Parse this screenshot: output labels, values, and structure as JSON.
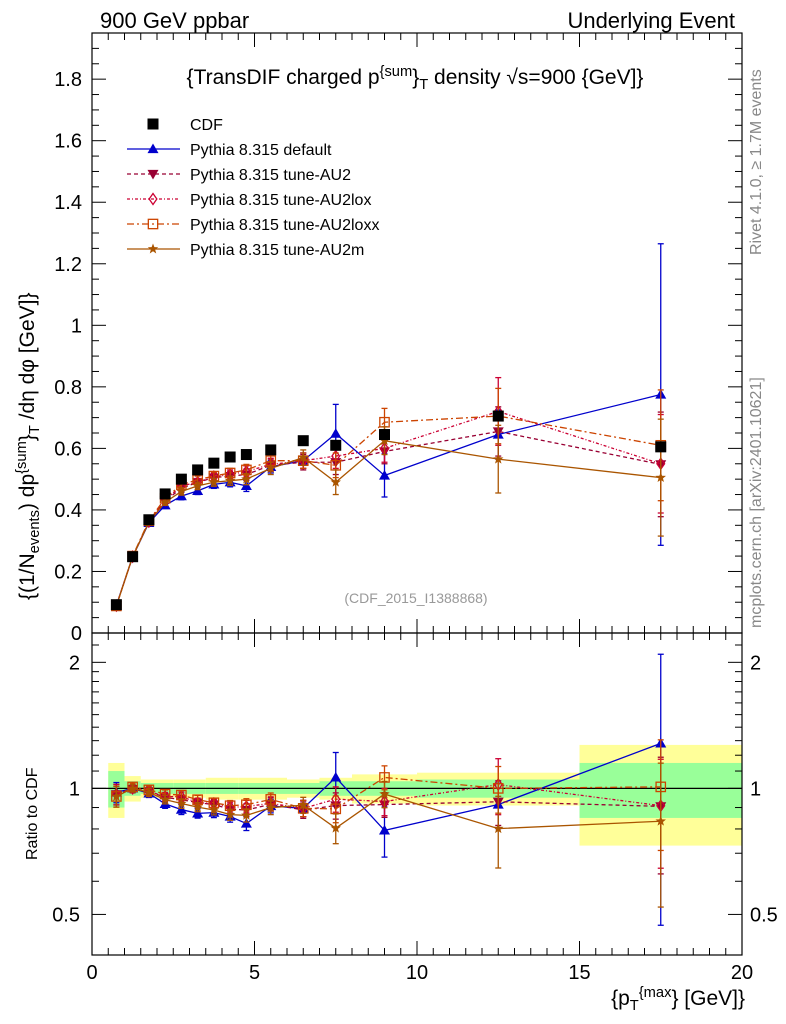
{
  "header": {
    "left": "900 GeV ppbar",
    "right": "Underlying Event"
  },
  "side": {
    "rivet": "Rivet 4.1.0, ≥ 1.7M events",
    "mcplots": "mcplots.cern.ch [arXiv:2401.10621]"
  },
  "chart_data": {
    "type": "scatter",
    "title": "{TransDIF charged p",
    "title_sup": "{sum",
    "title_tail": "}",
    "title_sub": "T",
    "title_end": " density √s=900 {GeV]}",
    "analysis": "(CDF_2015_I1388868)",
    "ylabel": "{(1/N_events) dp^{sum}}_T /dη dφ [GeV]}",
    "ylabel_parts": {
      "a": "{(1/N",
      "a_sub": "events",
      "b": ") dp",
      "b_sup": "{sum",
      "c": "}",
      "c_sub": "T",
      "d": " /dη  dφ [GeV]}"
    },
    "xlabel_parts": {
      "a": "{p",
      "a_sub": "T",
      "a_sup": "{max",
      "b": "} [GeV]}"
    },
    "ratio_ylabel": "Ratio to CDF",
    "xlim": [
      0,
      20
    ],
    "ylim": [
      0,
      1.95
    ],
    "ratio_ylim": [
      0.4,
      2.35
    ],
    "x_ticks": [
      0,
      5,
      10,
      15,
      20
    ],
    "x_tick_labels": [
      "0",
      "5",
      "10",
      "15",
      "20"
    ],
    "y_ticks": [
      0,
      0.2,
      0.4,
      0.6,
      0.8,
      1,
      1.2,
      1.4,
      1.6,
      1.8
    ],
    "y_tick_labels": [
      "0",
      "0.2",
      "0.4",
      "0.6",
      "0.8",
      "1",
      "1.2",
      "1.4",
      "1.6",
      "1.8"
    ],
    "ratio_ticks": [
      0.5,
      1,
      2
    ],
    "ratio_tick_labels": [
      "0.5",
      "1",
      "2"
    ],
    "x": [
      0.75,
      1.25,
      1.75,
      2.25,
      2.75,
      3.25,
      3.75,
      4.25,
      4.75,
      5.5,
      6.5,
      7.5,
      9.0,
      12.5,
      17.5
    ],
    "x_bins": [
      [
        0.5,
        1.0
      ],
      [
        1.0,
        1.5
      ],
      [
        1.5,
        2.0
      ],
      [
        2.0,
        2.5
      ],
      [
        2.5,
        3.0
      ],
      [
        3.0,
        3.5
      ],
      [
        3.5,
        4.0
      ],
      [
        4.0,
        4.5
      ],
      [
        4.5,
        5.0
      ],
      [
        5.0,
        6.0
      ],
      [
        6.0,
        7.0
      ],
      [
        7.0,
        8.0
      ],
      [
        8.0,
        10.0
      ],
      [
        10.0,
        15.0
      ],
      [
        15.0,
        20.0
      ]
    ],
    "data": {
      "name": "CDF",
      "color": "#000000",
      "values": [
        0.092,
        0.248,
        0.368,
        0.452,
        0.5,
        0.53,
        0.552,
        0.572,
        0.58,
        0.595,
        0.625,
        0.61,
        0.645,
        0.705,
        0.605
      ],
      "band_inner": [
        0.1,
        0.04,
        0.03,
        0.03,
        0.03,
        0.03,
        0.03,
        0.03,
        0.03,
        0.03,
        0.03,
        0.04,
        0.04,
        0.05,
        0.15
      ],
      "band_outer": [
        0.15,
        0.07,
        0.05,
        0.05,
        0.05,
        0.05,
        0.06,
        0.06,
        0.06,
        0.06,
        0.05,
        0.06,
        0.08,
        0.09,
        0.27
      ]
    },
    "series": [
      {
        "name": "Pythia 8.315 default",
        "color": "#0000cc",
        "dash": "",
        "marker": "triangle-up",
        "values": [
          0.09,
          0.248,
          0.358,
          0.415,
          0.445,
          0.462,
          0.483,
          0.49,
          0.478,
          0.54,
          0.56,
          0.648,
          0.512,
          0.645,
          0.775
        ],
        "errors": [
          0.005,
          0.005,
          0.008,
          0.01,
          0.012,
          0.012,
          0.013,
          0.015,
          0.018,
          0.02,
          0.025,
          0.095,
          0.07,
          0.08,
          0.49
        ]
      },
      {
        "name": "Pythia 8.315 tune-AU2",
        "color": "#990033",
        "dash": "4,3",
        "marker": "triangle-down",
        "values": [
          0.089,
          0.247,
          0.362,
          0.43,
          0.47,
          0.49,
          0.505,
          0.51,
          0.515,
          0.545,
          0.555,
          0.555,
          0.59,
          0.655,
          0.548
        ],
        "errors": [
          0.005,
          0.005,
          0.008,
          0.01,
          0.012,
          0.012,
          0.013,
          0.015,
          0.018,
          0.02,
          0.025,
          0.04,
          0.04,
          0.08,
          0.17
        ]
      },
      {
        "name": "Pythia 8.315 tune-AU2lox",
        "color": "#cc0033",
        "dash": "3,2,1,2",
        "marker": "diamond-open",
        "values": [
          0.089,
          0.248,
          0.362,
          0.432,
          0.478,
          0.49,
          0.508,
          0.515,
          0.525,
          0.548,
          0.56,
          0.575,
          0.6,
          0.72,
          0.55
        ],
        "errors": [
          0.005,
          0.005,
          0.008,
          0.01,
          0.012,
          0.012,
          0.013,
          0.015,
          0.018,
          0.02,
          0.025,
          0.04,
          0.045,
          0.11,
          0.16
        ]
      },
      {
        "name": "Pythia 8.315 tune-AU2loxx",
        "color": "#cc4400",
        "dash": "7,3,2,3",
        "marker": "square-open",
        "values": [
          0.088,
          0.25,
          0.365,
          0.438,
          0.482,
          0.498,
          0.51,
          0.52,
          0.53,
          0.56,
          0.56,
          0.545,
          0.685,
          0.705,
          0.61
        ],
        "errors": [
          0.005,
          0.005,
          0.008,
          0.01,
          0.012,
          0.012,
          0.013,
          0.015,
          0.018,
          0.02,
          0.025,
          0.04,
          0.045,
          0.09,
          0.18
        ]
      },
      {
        "name": "Pythia 8.315 tune-AU2m",
        "color": "#aa5500",
        "dash": "",
        "marker": "star",
        "values": [
          0.088,
          0.248,
          0.36,
          0.425,
          0.46,
          0.478,
          0.49,
          0.495,
          0.5,
          0.535,
          0.57,
          0.49,
          0.625,
          0.565,
          0.505
        ],
        "errors": [
          0.005,
          0.005,
          0.008,
          0.01,
          0.012,
          0.012,
          0.013,
          0.015,
          0.018,
          0.02,
          0.025,
          0.04,
          0.045,
          0.11,
          0.19
        ]
      }
    ]
  }
}
